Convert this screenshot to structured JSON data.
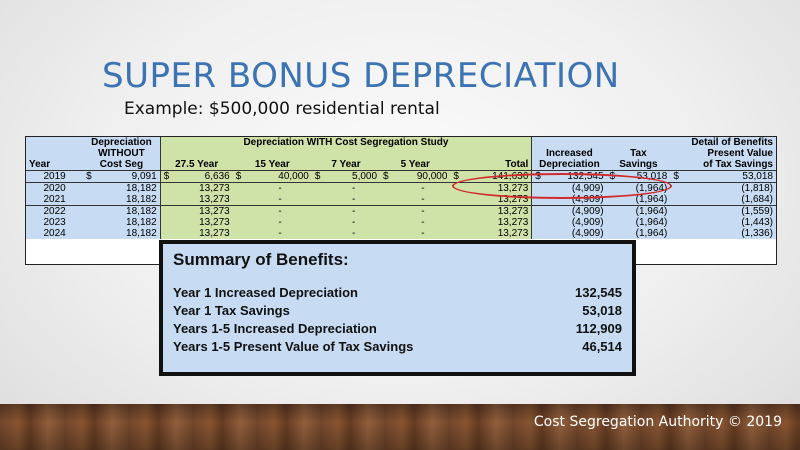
{
  "slide": {
    "title": "SUPER BONUS DEPRECIATION",
    "subtitle": "Example:  $500,000 residential rental",
    "credit": "Cost Segregation Authority © 2019"
  },
  "table": {
    "header": {
      "year": "Year",
      "dep_without_1": "Depreciation",
      "dep_without_2": "WITHOUT",
      "dep_without_3": "Cost Seg",
      "with_study": "Depreciation WITH Cost Segregation Study",
      "col_275": "27.5 Year",
      "col_15": "15 Year",
      "col_7": "7 Year",
      "col_5": "5 Year",
      "col_total": "Total",
      "increased_1": "Increased",
      "increased_2": "Depreciation",
      "tax_1": "Tax",
      "tax_2": "Savings",
      "detail": "Detail of Benefits",
      "pv_1": "Present Value",
      "pv_2": "of Tax Savings"
    },
    "rows": [
      {
        "year": "2019",
        "cur1": "$",
        "without": "9,091",
        "cur2": "$",
        "y275": "6,636",
        "cur3": "$",
        "y15": "40,000",
        "cur4": "$",
        "y7": "5,000",
        "cur5": "$",
        "y5": "90,000",
        "cur6": "$",
        "total": "141,636",
        "cur7": "$",
        "increased": "132,545",
        "cur8": "$",
        "tax": "53,018",
        "cur9": "$",
        "pv": "53,018"
      },
      {
        "year": "2020",
        "cur1": "",
        "without": "18,182",
        "cur2": "",
        "y275": "13,273",
        "cur3": "",
        "y15": "-",
        "cur4": "",
        "y7": "-",
        "cur5": "",
        "y5": "-",
        "cur6": "",
        "total": "13,273",
        "cur7": "",
        "increased": "(4,909)",
        "cur8": "",
        "tax": "(1,964)",
        "cur9": "",
        "pv": "(1,818)"
      },
      {
        "year": "2021",
        "cur1": "",
        "without": "18,182",
        "cur2": "",
        "y275": "13,273",
        "cur3": "",
        "y15": "-",
        "cur4": "",
        "y7": "-",
        "cur5": "",
        "y5": "-",
        "cur6": "",
        "total": "13,273",
        "cur7": "",
        "increased": "(4,909)",
        "cur8": "",
        "tax": "(1,964)",
        "cur9": "",
        "pv": "(1,684)"
      },
      {
        "year": "2022",
        "cur1": "",
        "without": "18,182",
        "cur2": "",
        "y275": "13,273",
        "cur3": "",
        "y15": "-",
        "cur4": "",
        "y7": "-",
        "cur5": "",
        "y5": "-",
        "cur6": "",
        "total": "13,273",
        "cur7": "",
        "increased": "(4,909)",
        "cur8": "",
        "tax": "(1,964)",
        "cur9": "",
        "pv": "(1,559)"
      },
      {
        "year": "2023",
        "cur1": "",
        "without": "18,182",
        "cur2": "",
        "y275": "13,273",
        "cur3": "",
        "y15": "-",
        "cur4": "",
        "y7": "-",
        "cur5": "",
        "y5": "-",
        "cur6": "",
        "total": "13,273",
        "cur7": "",
        "increased": "(4,909)",
        "cur8": "",
        "tax": "(1,964)",
        "cur9": "",
        "pv": "(1,443)"
      },
      {
        "year": "2024",
        "cur1": "",
        "without": "18,182",
        "cur2": "",
        "y275": "13,273",
        "cur3": "",
        "y15": "-",
        "cur4": "",
        "y7": "-",
        "cur5": "",
        "y5": "-",
        "cur6": "",
        "total": "13,273",
        "cur7": "",
        "increased": "(4,909)",
        "cur8": "",
        "tax": "(1,964)",
        "cur9": "",
        "pv": "(1,336)"
      }
    ]
  },
  "summary": {
    "title": "Summary of Benefits:",
    "items": [
      {
        "label": "Year 1 Increased Depreciation",
        "value": "132,545"
      },
      {
        "label": "Year 1 Tax Savings",
        "value": "53,018"
      },
      {
        "label": "Years 1-5 Increased Depreciation",
        "value": "112,909"
      },
      {
        "label": "Years 1-5 Present Value of Tax Savings",
        "value": "46,514"
      }
    ]
  },
  "colors": {
    "title_blue": "#3b73b3",
    "table_blue": "#c7dbf2",
    "table_green": "#cfe2a8",
    "highlight_red": "#d12b2b"
  }
}
